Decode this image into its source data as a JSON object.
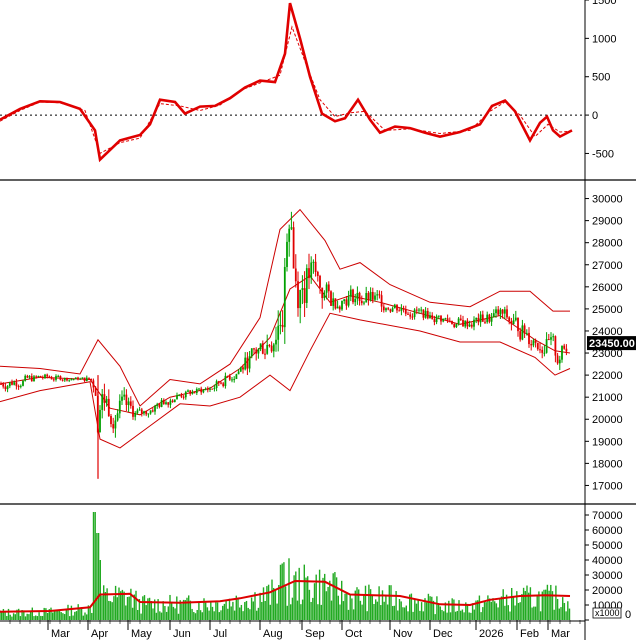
{
  "colors": {
    "macd": "#e00000",
    "bands": "#cc0000",
    "up": "#00a000",
    "down": "#e00000",
    "volume": "#22aa22",
    "volume_ma": "#dd0000",
    "grid": "#000000"
  },
  "chart_data": [
    {
      "type": "line",
      "panel": "oscillator",
      "yticks": [
        -500,
        0,
        500,
        1000,
        1500
      ],
      "ylim": [
        -820,
        1500
      ],
      "reference_line": 0,
      "series": [
        {
          "style": "solid",
          "points": [
            [
              0,
              -60
            ],
            [
              20,
              80
            ],
            [
              40,
              180
            ],
            [
              60,
              170
            ],
            [
              80,
              80
            ],
            [
              95,
              -200
            ],
            [
              100,
              -580
            ],
            [
              120,
              -330
            ],
            [
              140,
              -260
            ],
            [
              150,
              -120
            ],
            [
              160,
              200
            ],
            [
              175,
              170
            ],
            [
              185,
              20
            ],
            [
              200,
              110
            ],
            [
              215,
              120
            ],
            [
              230,
              220
            ],
            [
              245,
              360
            ],
            [
              260,
              450
            ],
            [
              275,
              430
            ],
            [
              285,
              800
            ],
            [
              290,
              1460
            ],
            [
              300,
              1000
            ],
            [
              310,
              500
            ],
            [
              322,
              20
            ],
            [
              335,
              -80
            ],
            [
              345,
              -40
            ],
            [
              358,
              200
            ],
            [
              370,
              -60
            ],
            [
              380,
              -230
            ],
            [
              395,
              -150
            ],
            [
              410,
              -170
            ],
            [
              425,
              -230
            ],
            [
              440,
              -280
            ],
            [
              460,
              -220
            ],
            [
              480,
              -120
            ],
            [
              492,
              120
            ],
            [
              505,
              190
            ],
            [
              515,
              50
            ],
            [
              530,
              -330
            ],
            [
              540,
              -100
            ],
            [
              547,
              -20
            ],
            [
              553,
              -200
            ],
            [
              560,
              -280
            ],
            [
              572,
              -200
            ]
          ]
        },
        {
          "style": "dashed",
          "points": [
            [
              0,
              -80
            ],
            [
              20,
              60
            ],
            [
              40,
              170
            ],
            [
              60,
              160
            ],
            [
              85,
              60
            ],
            [
              100,
              -500
            ],
            [
              120,
              -360
            ],
            [
              140,
              -300
            ],
            [
              160,
              150
            ],
            [
              180,
              120
            ],
            [
              200,
              60
            ],
            [
              220,
              130
            ],
            [
              240,
              320
            ],
            [
              260,
              420
            ],
            [
              280,
              520
            ],
            [
              292,
              1150
            ],
            [
              305,
              700
            ],
            [
              320,
              200
            ],
            [
              335,
              -20
            ],
            [
              350,
              30
            ],
            [
              365,
              50
            ],
            [
              385,
              -200
            ],
            [
              410,
              -180
            ],
            [
              440,
              -240
            ],
            [
              470,
              -200
            ],
            [
              490,
              50
            ],
            [
              505,
              170
            ],
            [
              520,
              0
            ],
            [
              535,
              -280
            ],
            [
              548,
              -120
            ],
            [
              560,
              -220
            ],
            [
              572,
              -210
            ]
          ]
        }
      ]
    },
    {
      "type": "candlestick",
      "panel": "price",
      "yticks": [
        17000,
        18000,
        19000,
        20000,
        21000,
        22000,
        23000,
        24000,
        25000,
        26000,
        27000,
        28000,
        29000,
        30000
      ],
      "ylim": [
        16250,
        30750
      ],
      "last_price": "23450.00",
      "bands_upper": [
        [
          0,
          22400
        ],
        [
          40,
          22300
        ],
        [
          80,
          22050
        ],
        [
          98,
          23600
        ],
        [
          120,
          22400
        ],
        [
          140,
          20600
        ],
        [
          170,
          21800
        ],
        [
          200,
          21600
        ],
        [
          230,
          22500
        ],
        [
          260,
          24600
        ],
        [
          280,
          28600
        ],
        [
          300,
          29500
        ],
        [
          325,
          28100
        ],
        [
          340,
          26800
        ],
        [
          360,
          27100
        ],
        [
          390,
          26100
        ],
        [
          430,
          25300
        ],
        [
          470,
          25100
        ],
        [
          500,
          25800
        ],
        [
          530,
          25800
        ],
        [
          553,
          24900
        ],
        [
          570,
          24900
        ]
      ],
      "bands_middle": [
        [
          0,
          21600
        ],
        [
          40,
          21900
        ],
        [
          90,
          21800
        ],
        [
          110,
          20500
        ],
        [
          140,
          20200
        ],
        [
          170,
          21000
        ],
        [
          210,
          21400
        ],
        [
          240,
          22300
        ],
        [
          270,
          23700
        ],
        [
          290,
          25900
        ],
        [
          310,
          26500
        ],
        [
          330,
          25300
        ],
        [
          350,
          25600
        ],
        [
          380,
          25300
        ],
        [
          420,
          24800
        ],
        [
          460,
          24300
        ],
        [
          500,
          24700
        ],
        [
          535,
          23600
        ],
        [
          555,
          23100
        ],
        [
          570,
          23000
        ]
      ],
      "bands_lower": [
        [
          0,
          20800
        ],
        [
          40,
          21300
        ],
        [
          90,
          21700
        ],
        [
          100,
          19100
        ],
        [
          120,
          18700
        ],
        [
          150,
          19700
        ],
        [
          180,
          20700
        ],
        [
          210,
          20600
        ],
        [
          240,
          21000
        ],
        [
          270,
          22000
        ],
        [
          290,
          21300
        ],
        [
          310,
          23100
        ],
        [
          330,
          24800
        ],
        [
          360,
          24500
        ],
        [
          420,
          24000
        ],
        [
          460,
          23500
        ],
        [
          500,
          23500
        ],
        [
          535,
          22800
        ],
        [
          555,
          22000
        ],
        [
          570,
          22300
        ]
      ]
    },
    {
      "type": "bar",
      "panel": "volume",
      "yticks": [
        0,
        10000,
        20000,
        30000,
        40000,
        50000,
        60000,
        70000
      ],
      "ylim": [
        0,
        76000
      ],
      "unit_label": "x1000",
      "ma": [
        [
          0,
          5500
        ],
        [
          50,
          6000
        ],
        [
          90,
          8500
        ],
        [
          100,
          17000
        ],
        [
          130,
          17500
        ],
        [
          140,
          12000
        ],
        [
          180,
          11500
        ],
        [
          220,
          12500
        ],
        [
          240,
          14500
        ],
        [
          270,
          18500
        ],
        [
          295,
          26000
        ],
        [
          325,
          25500
        ],
        [
          350,
          17000
        ],
        [
          400,
          16000
        ],
        [
          440,
          10500
        ],
        [
          470,
          10000
        ],
        [
          490,
          13500
        ],
        [
          520,
          16000
        ],
        [
          545,
          16500
        ],
        [
          570,
          16000
        ]
      ]
    }
  ],
  "xaxis": {
    "months": [
      "Mar",
      "Apr",
      "May",
      "Jun",
      "Jul",
      "Aug",
      "Sep",
      "Oct",
      "Nov",
      "Dec",
      "2026",
      "Feb",
      "Mar"
    ]
  }
}
